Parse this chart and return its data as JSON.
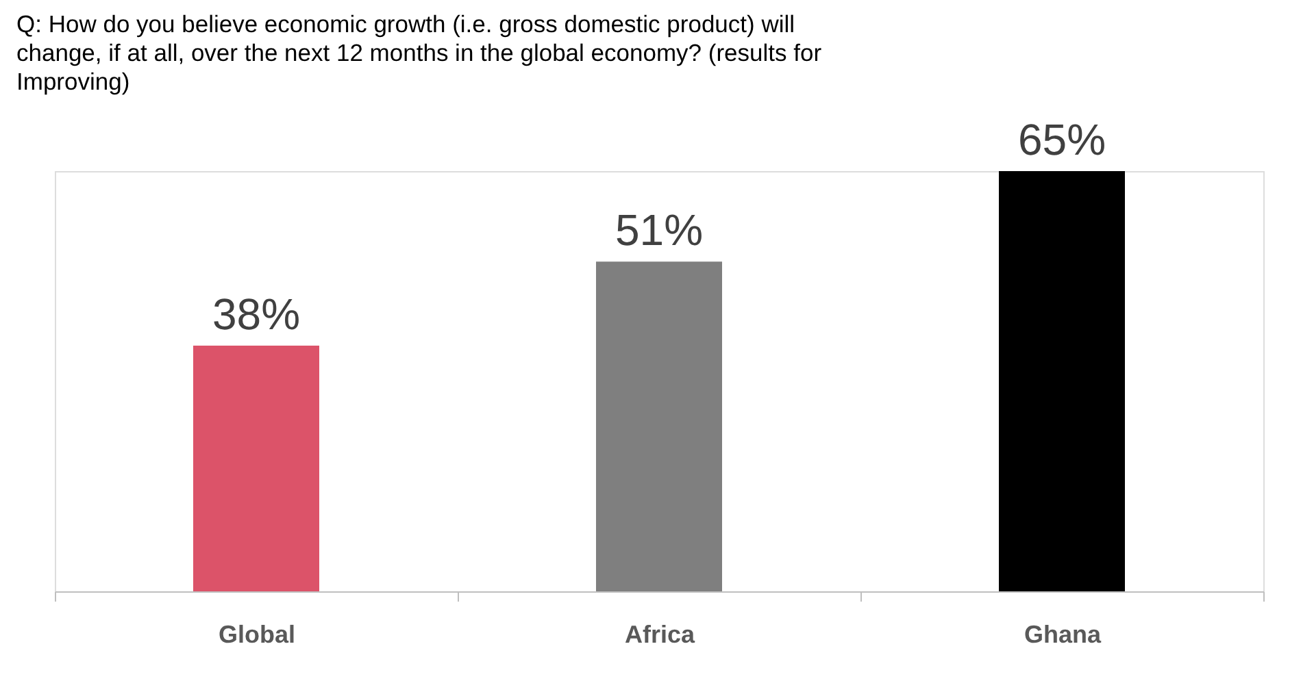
{
  "chart_data": {
    "type": "bar",
    "title": "Q: How do you believe economic growth (i.e. gross domestic product) will change, if at all, over the next 12 months in the global economy? (results for Improving)",
    "categories": [
      "Global",
      "Africa",
      "Ghana"
    ],
    "values": [
      38,
      51,
      65
    ],
    "colors": [
      "#dc5369",
      "#7f7f7f",
      "#000000"
    ],
    "value_labels": [
      "38%",
      "51%",
      "65%"
    ],
    "grid": false
  }
}
